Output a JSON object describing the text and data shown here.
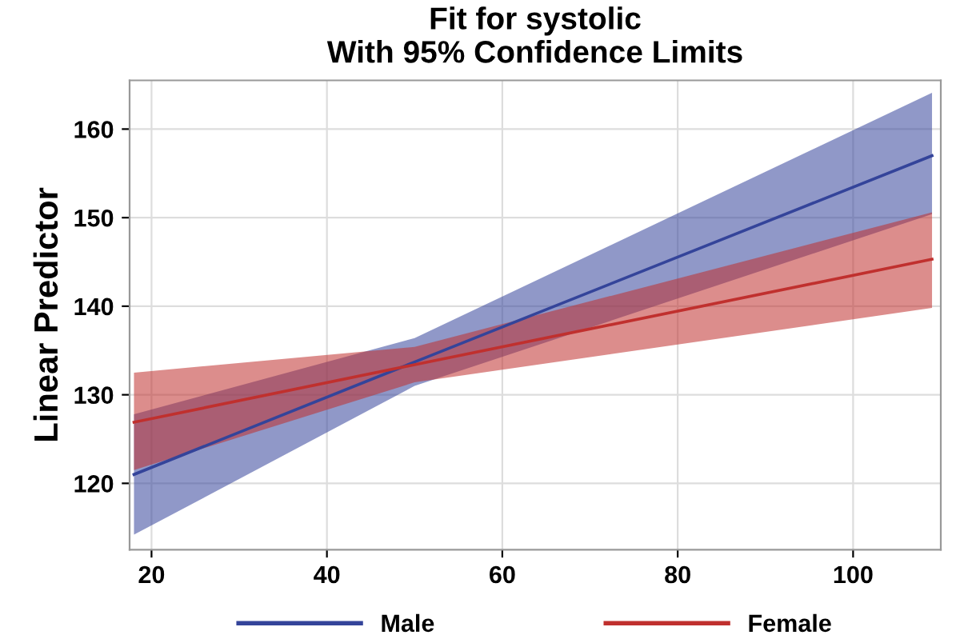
{
  "chart_data": {
    "type": "line",
    "title": "Fit for systolic\nWith 95% Confidence Limits",
    "ylabel": "Linear Predictor",
    "xlim": [
      17.5,
      110
    ],
    "xticks": [
      20,
      40,
      60,
      80,
      100
    ],
    "ylim": [
      112.5,
      165.5
    ],
    "yticks": [
      120,
      130,
      140,
      150,
      160
    ],
    "grid": true,
    "legend": "bottom",
    "marker": "none",
    "line_style": "solid",
    "series": [
      {
        "name": "Male",
        "color": "#34449a",
        "x": [
          18,
          50,
          109
        ],
        "values": [
          121,
          133.7,
          157
        ],
        "lower": [
          114.2,
          131,
          150.4
        ],
        "upper": [
          127.8,
          136.4,
          164.1
        ]
      },
      {
        "name": "Female",
        "color": "#c0302e",
        "x": [
          18,
          50,
          109
        ],
        "values": [
          126.9,
          133.4,
          145.3
        ],
        "lower": [
          121.5,
          131.4,
          139.8
        ],
        "upper": [
          132.5,
          135.4,
          150.6
        ]
      }
    ]
  }
}
